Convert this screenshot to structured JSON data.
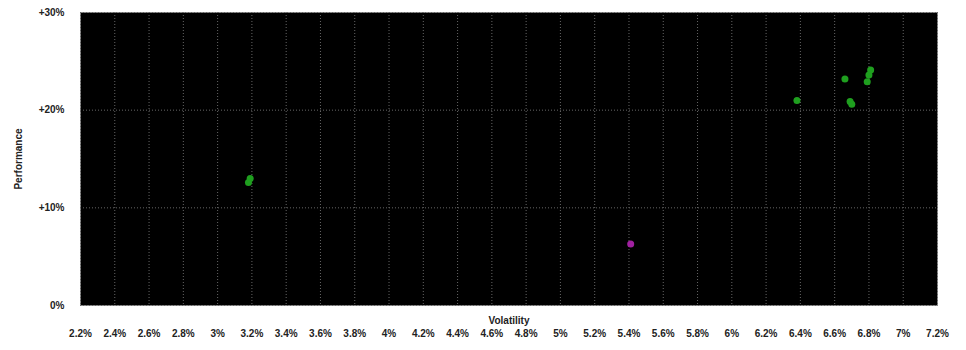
{
  "chart_data": {
    "type": "scatter",
    "x_label": "Volatility",
    "y_label": "Performance",
    "x": [
      3.19,
      3.18,
      5.41,
      6.38,
      6.66,
      6.69,
      6.7,
      6.79,
      6.8,
      6.81
    ],
    "values": [
      13.0,
      12.6,
      6.3,
      21.0,
      23.2,
      20.9,
      20.6,
      22.9,
      23.6,
      24.1
    ],
    "colors": [
      "#1f9f1f",
      "#1f9f1f",
      "#a020a0",
      "#1f9f1f",
      "#1f9f1f",
      "#1f9f1f",
      "#1f9f1f",
      "#1f9f1f",
      "#1f9f1f",
      "#1f9f1f"
    ],
    "xlim": [
      2.2,
      7.2
    ],
    "xticks": [
      {
        "value": 2.2,
        "label": "2.2%"
      },
      {
        "value": 2.4,
        "label": "2.4%"
      },
      {
        "value": 2.6,
        "label": "2.6%"
      },
      {
        "value": 2.8,
        "label": "2.8%"
      },
      {
        "value": 3,
        "label": "3%"
      },
      {
        "value": 3.2,
        "label": "3.2%"
      },
      {
        "value": 3.4,
        "label": "3.4%"
      },
      {
        "value": 3.6,
        "label": "3.6%"
      },
      {
        "value": 3.8,
        "label": "3.8%"
      },
      {
        "value": 4,
        "label": "4%"
      },
      {
        "value": 4.2,
        "label": "4.2%"
      },
      {
        "value": 4.4,
        "label": "4.4%"
      },
      {
        "value": 4.6,
        "label": "4.6%"
      },
      {
        "value": 4.8,
        "label": "4.8%"
      },
      {
        "value": 5,
        "label": "5%"
      },
      {
        "value": 5.2,
        "label": "5.2%"
      },
      {
        "value": 5.4,
        "label": "5.4%"
      },
      {
        "value": 5.6,
        "label": "5.6%"
      },
      {
        "value": 5.8,
        "label": "5.8%"
      },
      {
        "value": 6,
        "label": "6%"
      },
      {
        "value": 6.2,
        "label": "6.2%"
      },
      {
        "value": 6.4,
        "label": "6.4%"
      },
      {
        "value": 6.6,
        "label": "6.6%"
      },
      {
        "value": 6.8,
        "label": "6.8%"
      },
      {
        "value": 7,
        "label": "7%"
      },
      {
        "value": 7.2,
        "label": "7.2%"
      }
    ],
    "ylim": [
      0,
      30
    ],
    "yticks": [
      {
        "value": 0,
        "label": "0%"
      },
      {
        "value": 10,
        "label": "+10%"
      },
      {
        "value": 20,
        "label": "+20%"
      },
      {
        "value": 30,
        "label": "+30%"
      }
    ],
    "grid": true,
    "marker": "circle"
  }
}
